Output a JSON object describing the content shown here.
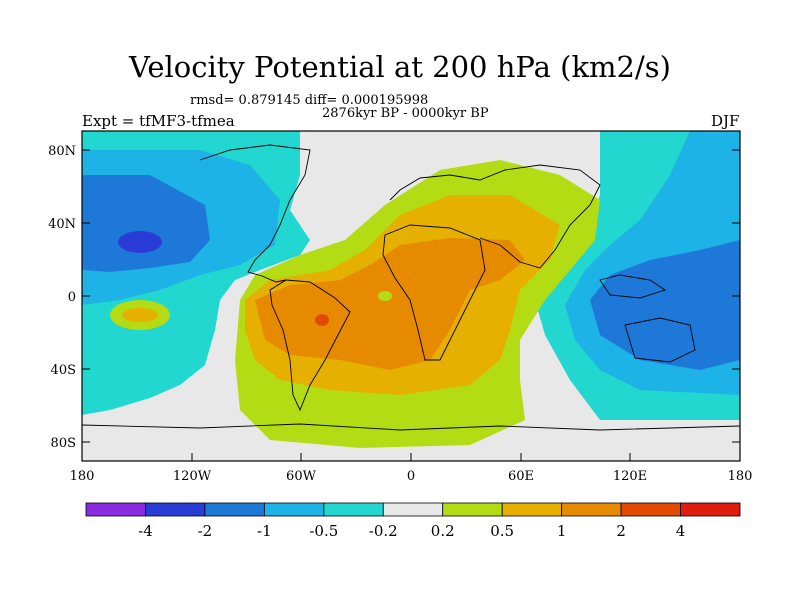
{
  "chart_data": {
    "type": "heatmap",
    "title": "Velocity Potential at 200 hPa (km2/s)",
    "stats": "rmsd= 0.879145 diff= 0.000195998",
    "period": "2876kyr BP - 0000kyr BP",
    "left_label": "Expt = tfMF3-tfmea",
    "right_label": "DJF",
    "lon_range": [
      -180,
      180
    ],
    "lat_range": [
      -90,
      90
    ],
    "lat_ticks": [
      "80N",
      "40N",
      "0",
      "40S",
      "80S"
    ],
    "lon_ticks": [
      "180",
      "120W",
      "60W",
      "0",
      "60E",
      "120E",
      "180"
    ],
    "colorbar": {
      "colors": [
        "#8a2be2",
        "#2a3cd6",
        "#1e78d8",
        "#1eb3e6",
        "#22d7d0",
        "#e8e8e8",
        "#b4dc14",
        "#e6b000",
        "#e68a00",
        "#e24a00",
        "#e01c10"
      ],
      "labels": [
        "-4",
        "-2",
        "-1",
        "-0.5",
        "-0.2",
        "0.2",
        "0.5",
        "1",
        "2",
        "4"
      ]
    },
    "regions_description": [
      {
        "name": "Americas-Africa positive center",
        "value_range": "1 to 4"
      },
      {
        "name": "Indo-Pacific negative center",
        "value_range": "-2 to -1"
      },
      {
        "name": "North Pacific negative center",
        "value_range": "-4 to -2"
      }
    ]
  }
}
